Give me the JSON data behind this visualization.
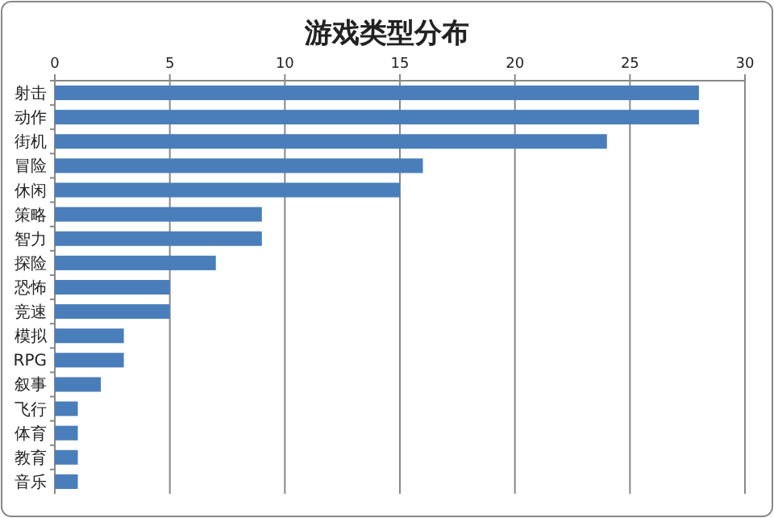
{
  "chart_data": {
    "type": "bar",
    "orientation": "horizontal",
    "title": "游戏类型分布",
    "categories": [
      "射击",
      "动作",
      "街机",
      "冒险",
      "休闲",
      "策略",
      "智力",
      "探险",
      "恐怖",
      "竞速",
      "模拟",
      "RPG",
      "叙事",
      "飞行",
      "体育",
      "教育",
      "音乐"
    ],
    "values": [
      28,
      28,
      24,
      16,
      15,
      9,
      9,
      7,
      5,
      5,
      3,
      3,
      2,
      1,
      1,
      1,
      1
    ],
    "color": "#4a7ebb",
    "xlim": [
      0,
      30
    ],
    "xticks": [
      0,
      5,
      10,
      15,
      20,
      25,
      30
    ],
    "grid": "x"
  }
}
